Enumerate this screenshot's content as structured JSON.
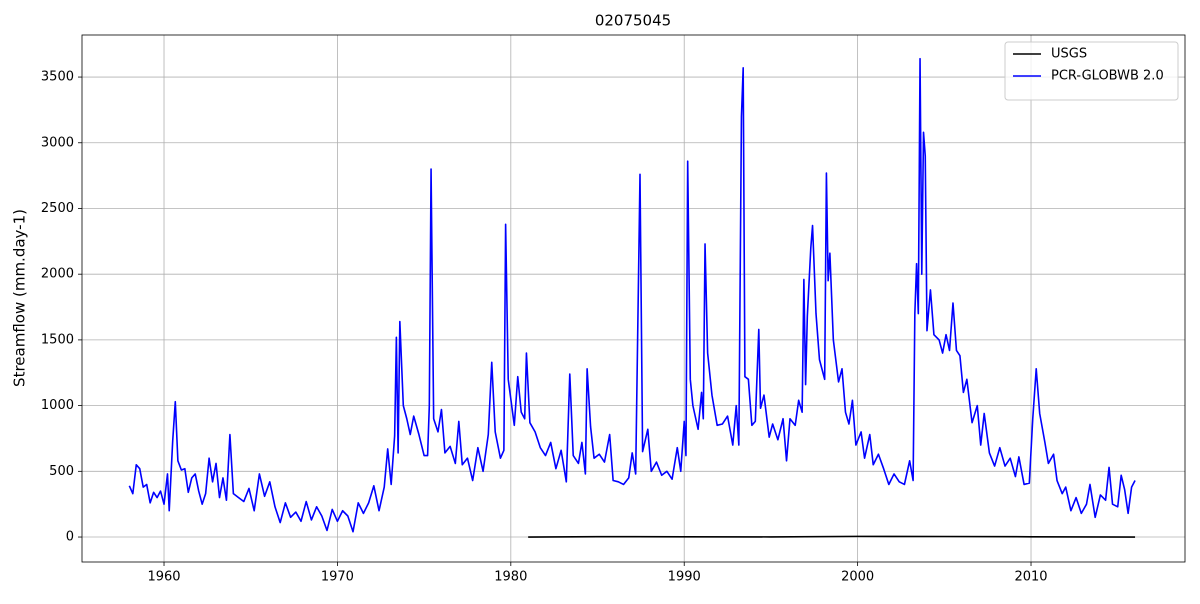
{
  "chart_data": {
    "type": "line",
    "title": "02075045",
    "y_label": "Streamflow (mm.day-1)",
    "xlim": [
      1955.27,
      2018.88
    ],
    "ylim": [
      -190,
      3820
    ],
    "xticks": [
      1960,
      1970,
      1980,
      1990,
      2000,
      2010
    ],
    "yticks": [
      0,
      500,
      1000,
      1500,
      2000,
      2500,
      3000,
      3500
    ],
    "grid": true,
    "legend": "upper right",
    "series": [
      {
        "name": "USGS",
        "color": "#000000",
        "x": [
          1981.0,
          1985.0,
          1990.0,
          1995.0,
          2000.0,
          2005.0,
          2010.0,
          2016.0
        ],
        "values": [
          0,
          3,
          2,
          1,
          5,
          4,
          2,
          0
        ]
      },
      {
        "name": "PCR-GLOBWB 2.0",
        "color": "#0000ff",
        "x": [
          1958.0,
          1958.2,
          1958.4,
          1958.6,
          1958.8,
          1959.0,
          1959.2,
          1959.4,
          1959.6,
          1959.8,
          1960.0,
          1960.2,
          1960.3,
          1960.5,
          1960.65,
          1960.8,
          1961.0,
          1961.2,
          1961.4,
          1961.6,
          1961.8,
          1962.0,
          1962.2,
          1962.4,
          1962.6,
          1962.8,
          1963.0,
          1963.2,
          1963.4,
          1963.6,
          1963.8,
          1964.0,
          1964.3,
          1964.6,
          1964.9,
          1965.2,
          1965.5,
          1965.8,
          1966.1,
          1966.4,
          1966.7,
          1967.0,
          1967.3,
          1967.6,
          1967.9,
          1968.2,
          1968.5,
          1968.8,
          1969.1,
          1969.4,
          1969.7,
          1970.0,
          1970.3,
          1970.6,
          1970.9,
          1971.2,
          1971.5,
          1971.8,
          1972.1,
          1972.4,
          1972.7,
          1972.9,
          1973.1,
          1973.3,
          1973.4,
          1973.5,
          1973.6,
          1973.8,
          1974.0,
          1974.2,
          1974.4,
          1974.7,
          1975.0,
          1975.2,
          1975.3,
          1975.4,
          1975.55,
          1975.8,
          1976.0,
          1976.2,
          1976.5,
          1976.8,
          1977.0,
          1977.2,
          1977.5,
          1977.8,
          1978.1,
          1978.4,
          1978.7,
          1978.9,
          1979.1,
          1979.4,
          1979.6,
          1979.7,
          1979.85,
          1980.0,
          1980.2,
          1980.4,
          1980.6,
          1980.8,
          1980.9,
          1981.1,
          1981.4,
          1981.7,
          1982.0,
          1982.3,
          1982.6,
          1982.9,
          1983.2,
          1983.4,
          1983.6,
          1983.9,
          1984.1,
          1984.3,
          1984.4,
          1984.6,
          1984.8,
          1985.1,
          1985.4,
          1985.7,
          1985.9,
          1986.2,
          1986.5,
          1986.8,
          1987.0,
          1987.2,
          1987.45,
          1987.6,
          1987.9,
          1988.1,
          1988.4,
          1988.7,
          1989.0,
          1989.3,
          1989.6,
          1989.8,
          1990.0,
          1990.1,
          1990.2,
          1990.35,
          1990.5,
          1990.8,
          1991.0,
          1991.1,
          1991.2,
          1991.35,
          1991.6,
          1991.9,
          1992.2,
          1992.5,
          1992.8,
          1993.0,
          1993.15,
          1993.3,
          1993.4,
          1993.5,
          1993.7,
          1993.9,
          1994.1,
          1994.3,
          1994.4,
          1994.6,
          1994.9,
          1995.1,
          1995.4,
          1995.7,
          1995.9,
          1996.1,
          1996.4,
          1996.6,
          1996.8,
          1996.9,
          1997.0,
          1997.1,
          1997.3,
          1997.4,
          1997.6,
          1997.8,
          1998.1,
          1998.2,
          1998.3,
          1998.4,
          1998.6,
          1998.9,
          1999.1,
          1999.3,
          1999.5,
          1999.7,
          1999.9,
          2000.2,
          2000.4,
          2000.7,
          2000.9,
          2001.2,
          2001.5,
          2001.8,
          2002.1,
          2002.4,
          2002.7,
          2003.0,
          2003.2,
          2003.3,
          2003.4,
          2003.5,
          2003.6,
          2003.7,
          2003.8,
          2003.9,
          2004.0,
          2004.2,
          2004.4,
          2004.7,
          2004.9,
          2005.1,
          2005.3,
          2005.5,
          2005.7,
          2005.9,
          2006.1,
          2006.3,
          2006.6,
          2006.9,
          2007.1,
          2007.3,
          2007.6,
          2007.9,
          2008.2,
          2008.5,
          2008.8,
          2009.1,
          2009.3,
          2009.6,
          2009.9,
          2010.1,
          2010.3,
          2010.5,
          2010.8,
          2011.0,
          2011.3,
          2011.5,
          2011.8,
          2012.0,
          2012.3,
          2012.6,
          2012.9,
          2013.2,
          2013.4,
          2013.7,
          2014.0,
          2014.3,
          2014.5,
          2014.7,
          2015.0,
          2015.2,
          2015.4,
          2015.6,
          2015.8,
          2016.0
        ],
        "values": [
          390,
          330,
          550,
          520,
          380,
          400,
          260,
          340,
          300,
          350,
          250,
          480,
          200,
          730,
          1030,
          580,
          510,
          520,
          340,
          450,
          480,
          350,
          250,
          330,
          600,
          420,
          560,
          300,
          450,
          280,
          780,
          330,
          300,
          270,
          370,
          200,
          480,
          310,
          420,
          230,
          110,
          260,
          150,
          190,
          120,
          270,
          130,
          230,
          160,
          50,
          210,
          120,
          200,
          160,
          40,
          260,
          180,
          260,
          390,
          200,
          380,
          670,
          400,
          770,
          1520,
          640,
          1640,
          1000,
          900,
          780,
          920,
          780,
          620,
          620,
          1000,
          2800,
          900,
          800,
          970,
          640,
          690,
          560,
          880,
          550,
          600,
          430,
          680,
          500,
          780,
          1330,
          800,
          600,
          660,
          2380,
          1200,
          1050,
          850,
          1220,
          950,
          900,
          1400,
          870,
          800,
          680,
          620,
          720,
          520,
          660,
          420,
          1240,
          620,
          560,
          720,
          480,
          1280,
          840,
          600,
          630,
          570,
          780,
          430,
          420,
          400,
          450,
          640,
          480,
          2760,
          650,
          820,
          500,
          570,
          470,
          500,
          440,
          680,
          500,
          880,
          620,
          2860,
          1200,
          1000,
          820,
          1100,
          900,
          2230,
          1400,
          1080,
          850,
          860,
          920,
          700,
          1000,
          700,
          3200,
          3570,
          1220,
          1200,
          850,
          880,
          1580,
          980,
          1080,
          760,
          860,
          740,
          900,
          580,
          900,
          850,
          1040,
          950,
          1960,
          1160,
          1680,
          2200,
          2370,
          1700,
          1350,
          1200,
          2770,
          1950,
          2160,
          1500,
          1180,
          1280,
          950,
          860,
          1040,
          700,
          800,
          600,
          780,
          550,
          630,
          520,
          400,
          480,
          420,
          400,
          580,
          430,
          1700,
          2080,
          1700,
          3640,
          2000,
          3080,
          2900,
          1570,
          1880,
          1540,
          1500,
          1400,
          1540,
          1420,
          1780,
          1420,
          1380,
          1100,
          1200,
          870,
          1000,
          700,
          940,
          640,
          540,
          680,
          540,
          600,
          460,
          610,
          400,
          410,
          900,
          1280,
          940,
          720,
          560,
          630,
          430,
          330,
          380,
          200,
          300,
          180,
          250,
          400,
          150,
          320,
          280,
          530,
          250,
          230,
          470,
          360,
          180,
          380,
          430
        ]
      }
    ]
  }
}
